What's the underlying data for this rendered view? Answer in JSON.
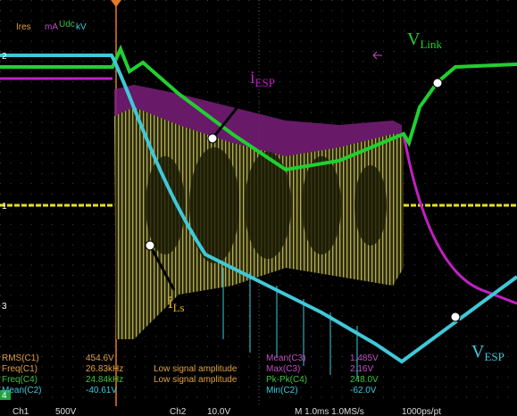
{
  "header": [
    "Ires",
    "mA",
    "Udc",
    "kV"
  ],
  "markers": [
    "2",
    "1",
    "3",
    "4"
  ],
  "annotations": [
    {
      "main": "i",
      "sub": "ESP"
    },
    {
      "main": "V",
      "sub": "Link"
    },
    {
      "main": "i",
      "sub": "Ls"
    },
    {
      "main": "V",
      "sub": "ESP"
    }
  ],
  "measurements": [
    [
      "RMS(C1)",
      "454.6V",
      null,
      "Mean(C3)",
      "1.485V"
    ],
    [
      "Freq(C1)",
      "26.83kHz",
      "Low signal amplitude",
      "Max(C3)",
      "2.16V"
    ],
    [
      "Freq(C4)",
      "24.84kHz",
      "Low signal amplitude",
      "Pk-Pk(C4)",
      "248.0V"
    ],
    [
      "Mean(C2)",
      "-40.61V",
      null,
      "Min(C2)",
      "-62.0V"
    ]
  ],
  "status": [
    "Ch1",
    "500V",
    "Ch2",
    "10.0V",
    "M 1.0ms 1.0MS/s",
    "1000ps/pt"
  ]
}
